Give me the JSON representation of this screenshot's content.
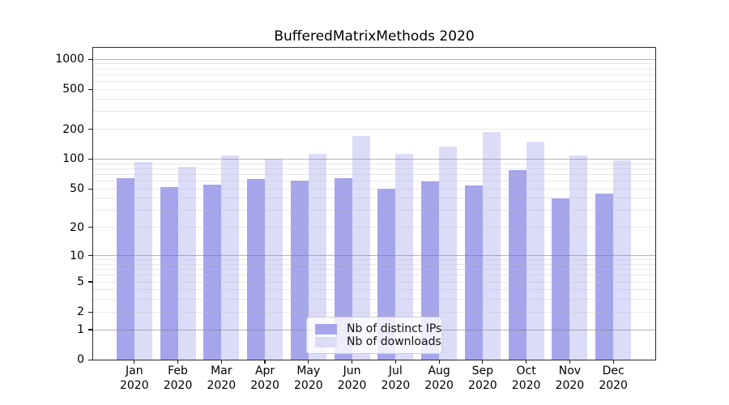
{
  "chart_data": {
    "type": "bar",
    "title": "BufferedMatrixMethods 2020",
    "xlabel": "",
    "ylabel": "",
    "categories": [
      "Jan 2020",
      "Feb 2020",
      "Mar 2020",
      "Apr 2020",
      "May 2020",
      "Jun 2020",
      "Jul 2020",
      "Aug 2020",
      "Sep 2020",
      "Oct 2020",
      "Nov 2020",
      "Dec 2020"
    ],
    "series": [
      {
        "name": "Nb of distinct IPs",
        "color": "#a5a5ec",
        "values": [
          64,
          52,
          55,
          63,
          61,
          64,
          50,
          60,
          54,
          77,
          40,
          45
        ]
      },
      {
        "name": "Nb of downloads",
        "color": "#dcdcf9",
        "values": [
          93,
          84,
          108,
          101,
          113,
          170,
          113,
          134,
          187,
          150,
          109,
          97
        ]
      }
    ],
    "yticks": [
      0,
      1,
      2,
      5,
      10,
      20,
      50,
      100,
      200,
      500,
      1000
    ],
    "yscale": "log10(value+1)",
    "ylim": [
      0,
      1330
    ],
    "grid": true,
    "legend_position": "lower center"
  }
}
